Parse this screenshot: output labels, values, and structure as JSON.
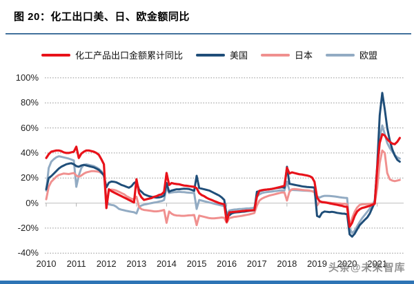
{
  "header": {
    "title": "图 20：化工出口美、日、欧金额同比"
  },
  "watermark": "头条@未来智库",
  "colors": {
    "title_rule": "#41719c",
    "bottom_bar": "#2e74b5",
    "gridline": "#8f8f8f",
    "zero_axis": "#c9c9c9",
    "series_red": "#e8121a",
    "series_usa": "#1f4e79",
    "series_japan": "#f0908f",
    "series_eu": "#92abc3"
  },
  "chart_data": {
    "type": "line",
    "title": "图 20：化工出口美、日、欧金额同比",
    "x_frequency": "monthly",
    "x_start": "2010-01",
    "x_end": "2021-10",
    "x_labels": [
      "2010",
      "2011",
      "2012",
      "2013",
      "2014",
      "2015",
      "2016",
      "2017",
      "2018",
      "2019",
      "2020",
      "2021"
    ],
    "y_ticks": [
      100,
      80,
      60,
      40,
      20,
      0,
      -20,
      -40
    ],
    "y_tick_labels": [
      "100%",
      "80%",
      "60%",
      "40%",
      "20%",
      "0%",
      "-20%",
      "-40%"
    ],
    "ylim": [
      -40,
      100
    ],
    "grid": "horizontal-dotted",
    "legend_position": "top",
    "series": [
      {
        "id": "chemical-export-cumulative-yoy",
        "name": "化工产品出口金额累计同比",
        "color": "#e8121a",
        "width": 3.2,
        "values": [
          36,
          39,
          41,
          41.5,
          42,
          42,
          41.5,
          40.5,
          40,
          40,
          40.5,
          41,
          45,
          36,
          39.5,
          41,
          42,
          42,
          41.5,
          41,
          40,
          38.5,
          35,
          31,
          -4,
          11,
          9.5,
          8.5,
          7.5,
          6.5,
          5.5,
          4.5,
          3.5,
          2.5,
          1.5,
          0.5,
          19,
          8,
          4.5,
          2.5,
          3,
          3.5,
          4,
          5,
          5.5,
          6.5,
          7,
          9,
          24,
          14.5,
          16,
          15.5,
          15.2,
          15,
          14.5,
          14,
          13.8,
          13.5,
          13.2,
          13,
          11.9,
          8,
          6.4,
          5.5,
          4.2,
          3.2,
          2.5,
          1.6,
          0.8,
          0,
          -0.5,
          -1,
          -15,
          -7.4,
          -7.2,
          -7,
          -6.8,
          -6.6,
          -6.4,
          -6.2,
          -6,
          -5.9,
          -5.8,
          -5.6,
          5,
          9.8,
          10.3,
          10.6,
          10.8,
          11,
          11.3,
          11.7,
          12.2,
          12.7,
          13.2,
          13.9,
          28.2,
          23.6,
          24.5,
          24,
          23.5,
          23,
          22.8,
          22.4,
          22,
          21.5,
          20.5,
          17,
          4.4,
          1.6,
          0.7,
          0.5,
          0.2,
          -0.2,
          -0.6,
          -1,
          -1.4,
          -1.8,
          -2.2,
          -2.8,
          -3,
          -19,
          -15.8,
          -10.3,
          -6.7,
          -4.9,
          -3.9,
          -3.4,
          -2.8,
          -2.2,
          -1.4,
          -0.5,
          28,
          48,
          55,
          54,
          51,
          49,
          47.5,
          47,
          49,
          52
        ]
      },
      {
        "id": "usa",
        "name": "美国",
        "color": "#1f4e79",
        "width": 3,
        "values": [
          11,
          20,
          21.5,
          23.5,
          25.5,
          27.5,
          29,
          30,
          31,
          31.5,
          31.8,
          31,
          29.5,
          29,
          30,
          30.5,
          30,
          29.5,
          29,
          28.5,
          27.5,
          26.5,
          24.5,
          22,
          12.6,
          16.3,
          17.2,
          17,
          16.5,
          15.5,
          14.5,
          13.8,
          13,
          12.3,
          13.5,
          16,
          17.2,
          10.8,
          9,
          7.1,
          6.2,
          5.5,
          5,
          4.7,
          4.4,
          4.5,
          5,
          6,
          16,
          9,
          10,
          10.5,
          11,
          11,
          11.3,
          11.5,
          11.4,
          11.2,
          10.5,
          9.7,
          21.8,
          12,
          11.5,
          11,
          10.5,
          10,
          9,
          8,
          7,
          6,
          4.5,
          2.5,
          -10.3,
          -9.8,
          -8.2,
          -7.6,
          -7.4,
          -7.2,
          -7,
          -6.8,
          -6.5,
          -6.2,
          -6,
          -5.8,
          9,
          9.5,
          10,
          10.5,
          10.8,
          11,
          11.3,
          11.7,
          12,
          12.3,
          12.6,
          12.2,
          29,
          15.4,
          15,
          14.6,
          14.2,
          13.8,
          13.4,
          13.1,
          12.9,
          12.7,
          12.6,
          12.4,
          -10.3,
          -11.2,
          -7.8,
          -6.7,
          -7,
          -7.2,
          -7,
          -7.3,
          -7.8,
          -8.1,
          -8.4,
          -8.5,
          -9,
          -25,
          -26.8,
          -24.5,
          -21,
          -17.6,
          -15.5,
          -13.5,
          -11.5,
          -8.5,
          -4,
          0.5,
          30,
          70,
          88,
          75,
          60,
          50,
          43,
          38,
          34.5,
          33
        ]
      },
      {
        "id": "japan",
        "name": "日本",
        "color": "#f0908f",
        "width": 3,
        "values": [
          3,
          13,
          17,
          19,
          21,
          22.4,
          23,
          23.6,
          23.4,
          23.2,
          23.6,
          24,
          22,
          21,
          22,
          23.5,
          24.5,
          25,
          25.5,
          25.5,
          25.3,
          25,
          24,
          22.5,
          -3,
          10,
          10.8,
          10.5,
          9.9,
          9,
          8,
          7.1,
          5.5,
          4.5,
          3.4,
          3,
          5,
          -3,
          -4.9,
          -5.5,
          -5.7,
          -6,
          -6.3,
          -6.6,
          -6.6,
          -6.4,
          -6,
          -5.5,
          -15.8,
          -6.7,
          -8.5,
          -9.5,
          -9.9,
          -10,
          -10.2,
          -10.2,
          -10,
          -9.8,
          -9.7,
          -9.5,
          -17.6,
          -10,
          -10.5,
          -11,
          -11.5,
          -12,
          -12.2,
          -12.2,
          -12,
          -11.8,
          -11.5,
          -11.8,
          -15.7,
          -12,
          -11.5,
          -11,
          -10.8,
          -10.5,
          -10.2,
          -9.8,
          -9.4,
          -9,
          -8.5,
          -8,
          -2,
          2,
          3.5,
          4.5,
          5.3,
          6,
          6.5,
          7,
          7.5,
          8,
          8.5,
          8.5,
          2,
          9,
          11,
          11.2,
          11,
          10.8,
          10.5,
          10.3,
          10.2,
          10,
          9.5,
          8.5,
          -2,
          1,
          1,
          0.8,
          0.5,
          0.3,
          0,
          0,
          -0.2,
          -0.3,
          -0.5,
          -0.5,
          -1,
          -19,
          -12,
          -7,
          -3.5,
          -1.5,
          -1,
          -1,
          -0.8,
          -0.6,
          -0.4,
          -0.2,
          12,
          32,
          42,
          40,
          24,
          19,
          18,
          17.5,
          18,
          18.5
        ]
      },
      {
        "id": "eu",
        "name": "欧盟",
        "color": "#92abc3",
        "width": 3,
        "values": [
          10,
          28,
          33,
          35,
          36.5,
          37.4,
          37,
          36.5,
          36,
          35.5,
          34.8,
          34,
          13,
          22,
          28,
          30.5,
          31,
          30.5,
          30,
          29.5,
          28.5,
          27.3,
          25.5,
          22,
          2,
          -1,
          -1.5,
          -1.8,
          -3,
          -4.7,
          -5.3,
          -5.7,
          -6.2,
          -6.6,
          -7,
          -7.3,
          -8.3,
          -3,
          -1.9,
          -1.2,
          -0.8,
          -0.4,
          0,
          0.4,
          0.7,
          1.2,
          1.6,
          2.5,
          12.6,
          8,
          8.5,
          8.7,
          8.8,
          9,
          8.8,
          8.7,
          8.5,
          8.3,
          8.2,
          8,
          -4.7,
          2.5,
          2,
          1.5,
          1,
          0.5,
          0,
          -0.5,
          -1,
          -1.5,
          -2,
          -2.4,
          -8.9,
          -6,
          -5.5,
          -5.2,
          -5,
          -4.8,
          -4.7,
          -4.5,
          -4.3,
          -4.2,
          -4,
          -3.8,
          5,
          7,
          8,
          8.5,
          8.8,
          9,
          9.2,
          9.5,
          9.7,
          10,
          10.2,
          10,
          17.2,
          10,
          10.5,
          10.4,
          10.3,
          10.2,
          10,
          9.9,
          9.8,
          9.7,
          9.5,
          9.2,
          5.3,
          4.4,
          5.3,
          5.8,
          5.8,
          5.7,
          5.5,
          5.3,
          5,
          4.7,
          4.4,
          4.2,
          4,
          -20,
          -24,
          -22,
          -18.5,
          -15,
          -12,
          -9.5,
          -7,
          -4.5,
          -1.5,
          2,
          28,
          52,
          62,
          55,
          48,
          44,
          41,
          38.5,
          36.5,
          35.5
        ]
      }
    ]
  }
}
